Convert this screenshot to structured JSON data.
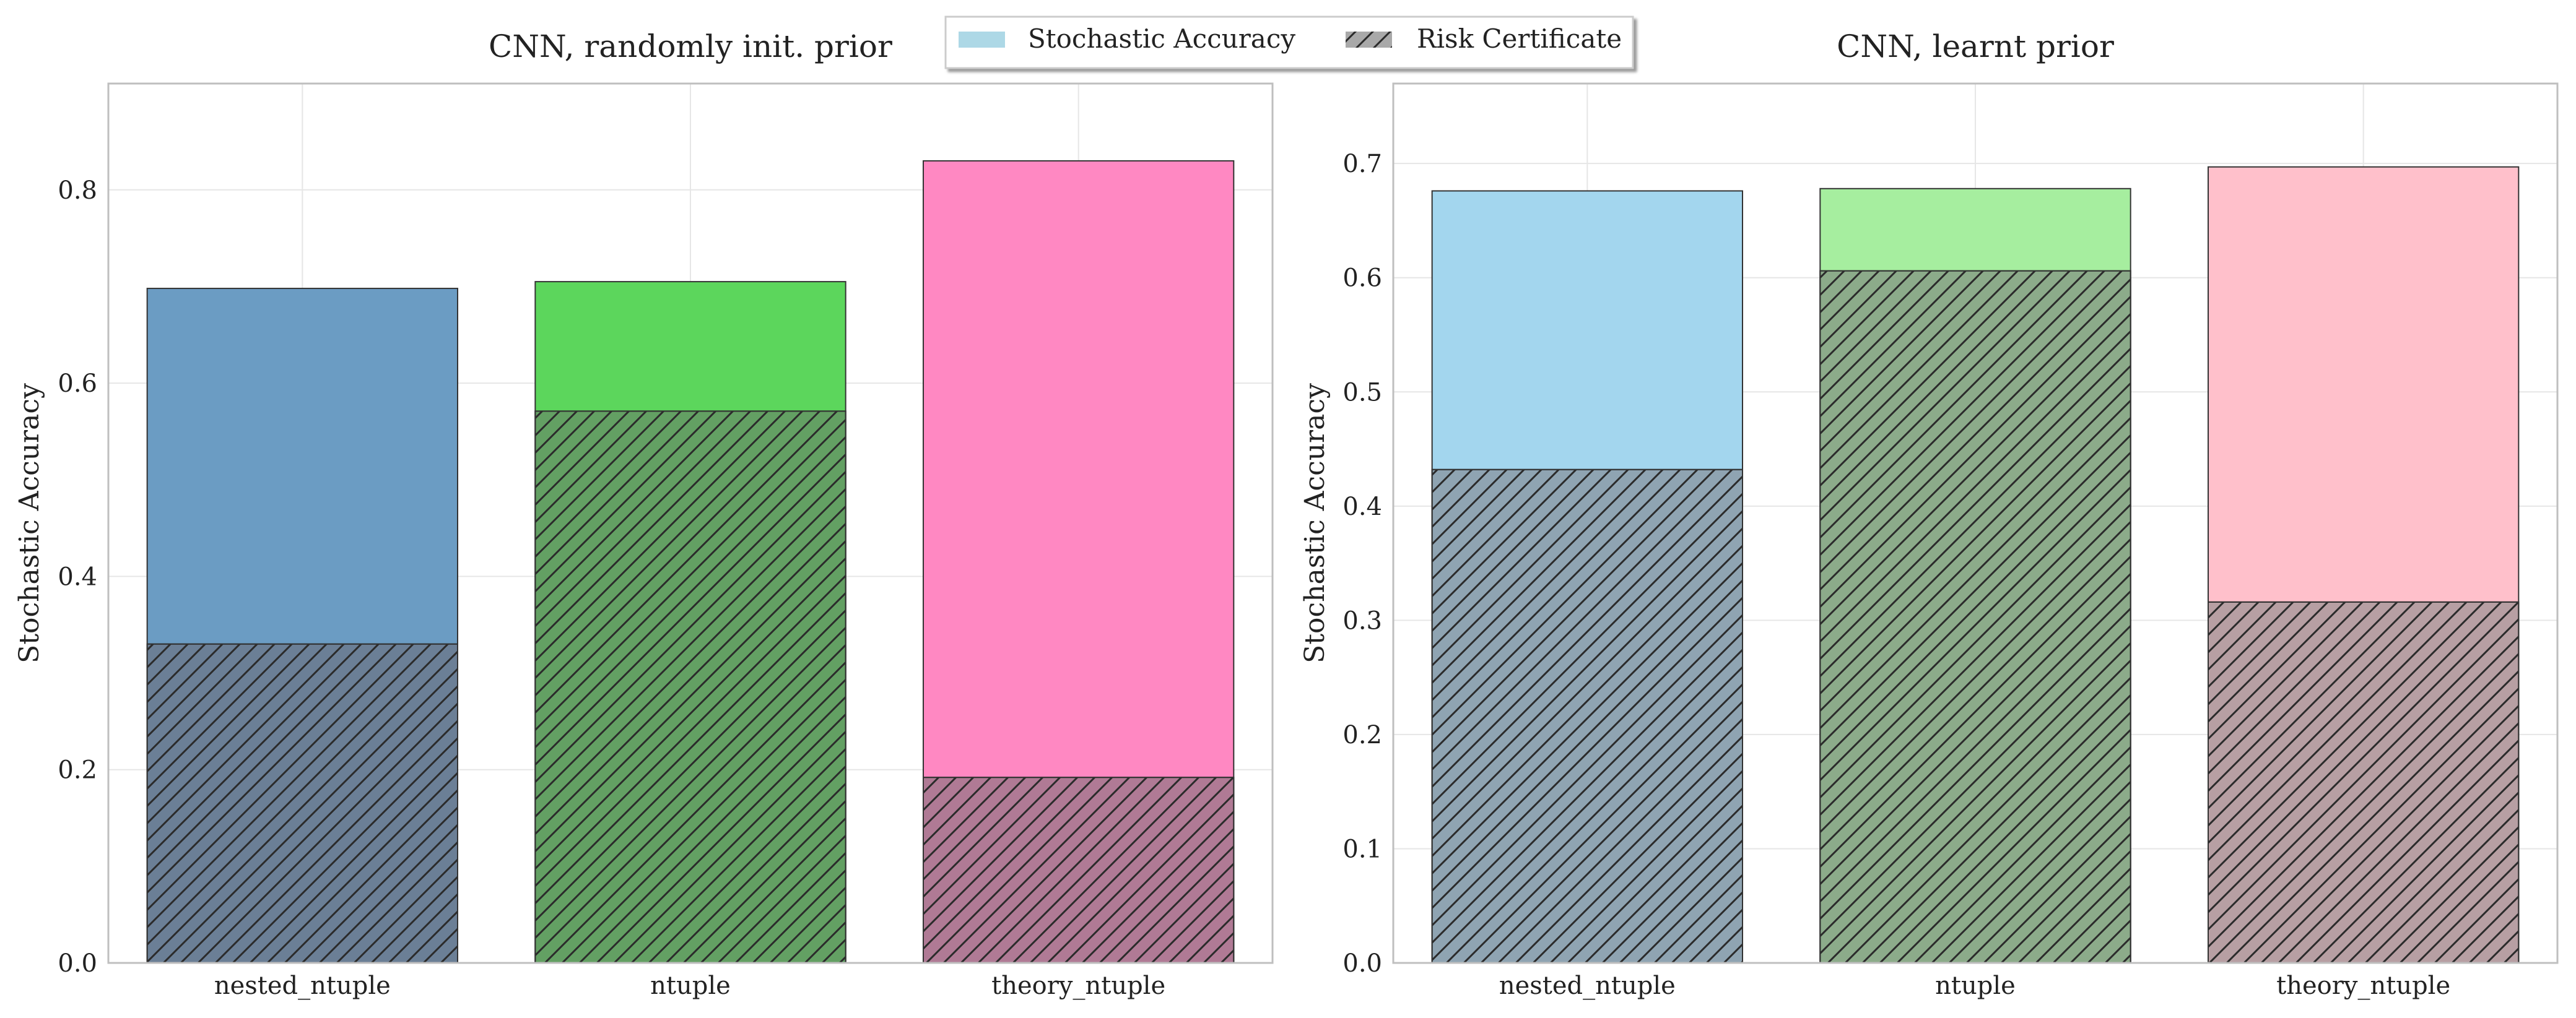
{
  "legend": {
    "items": [
      {
        "label": "Stochastic Accuracy",
        "style": "solid",
        "color": "#add8e6"
      },
      {
        "label": "Risk Certificate",
        "style": "hatched",
        "color": "#a9a9a9"
      }
    ]
  },
  "chart_data": [
    {
      "type": "bar",
      "title": "CNN, randomly init. prior",
      "ylabel": "Stochastic Accuracy",
      "xlabel": "",
      "categories": [
        "nested_ntuple",
        "ntuple",
        "theory_ntuple"
      ],
      "ylim": [
        0,
        0.91
      ],
      "yticks": [
        0.0,
        0.2,
        0.4,
        0.6,
        0.8
      ],
      "ytick_labels": [
        "0.0",
        "0.2",
        "0.4",
        "0.6",
        "0.8"
      ],
      "grid": true,
      "series": [
        {
          "name": "Stochastic Accuracy",
          "values": [
            0.698,
            0.705,
            0.83
          ],
          "colors": [
            "#6b9cc3",
            "#5cd65c",
            "#ff88c2"
          ]
        },
        {
          "name": "Risk Certificate",
          "values": [
            0.33,
            0.571,
            0.192
          ],
          "colors": [
            "#6b7f96",
            "#63a063",
            "#b07a95"
          ]
        }
      ]
    },
    {
      "type": "bar",
      "title": "CNN, learnt prior",
      "ylabel": "Stochastic Accuracy",
      "xlabel": "",
      "categories": [
        "nested_ntuple",
        "ntuple",
        "theory_ntuple"
      ],
      "ylim": [
        0,
        0.77
      ],
      "yticks": [
        0.0,
        0.1,
        0.2,
        0.3,
        0.4,
        0.5,
        0.6,
        0.7
      ],
      "ytick_labels": [
        "0.0",
        "0.1",
        "0.2",
        "0.3",
        "0.4",
        "0.5",
        "0.6",
        "0.7"
      ],
      "grid": true,
      "series": [
        {
          "name": "Stochastic Accuracy",
          "values": [
            0.676,
            0.678,
            0.697
          ],
          "colors": [
            "#a3d6ee",
            "#a6ee9f",
            "#ffc0cb"
          ]
        },
        {
          "name": "Risk Certificate",
          "values": [
            0.432,
            0.606,
            0.316
          ],
          "colors": [
            "#8fa4b2",
            "#8cab8a",
            "#b79fa3"
          ]
        }
      ]
    }
  ]
}
